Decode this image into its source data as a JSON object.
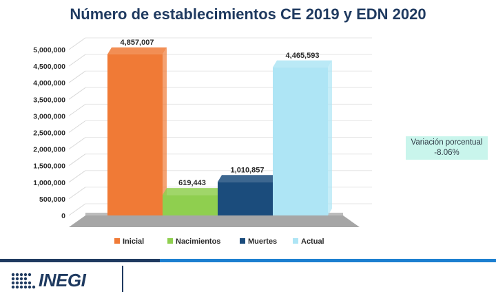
{
  "title": "Número de establecimientos CE 2019 y EDN 2020",
  "variation": {
    "line1": "Variación porcentual",
    "line2": "-8.06%"
  },
  "logo": {
    "text": "INEGI"
  },
  "colors": {
    "inicial": "#f07a36",
    "nacimientos": "#8fcf4f",
    "muertes": "#1b4c7c",
    "actual": "#aee5f5",
    "title": "#1f3a60"
  },
  "chart_data": {
    "type": "bar",
    "categories": [
      "Inicial",
      "Nacimientos",
      "Muertes",
      "Actual"
    ],
    "values": [
      4857007,
      619443,
      1010857,
      4465593
    ],
    "value_labels": [
      "4,857,007",
      "619,443",
      "1,010,857",
      "4,465,593"
    ],
    "y_ticks": [
      "0",
      "500,000",
      "1,000,000",
      "1,500,000",
      "2,000,000",
      "2,500,000",
      "3,000,000",
      "3,500,000",
      "4,000,000",
      "4,500,000",
      "5,000,000"
    ],
    "ylim": [
      0,
      5000000
    ],
    "legend": [
      "Inicial",
      "Nacimientos",
      "Muertes",
      "Actual"
    ],
    "legend_position": "bottom",
    "waterfall": true,
    "grid": true
  }
}
